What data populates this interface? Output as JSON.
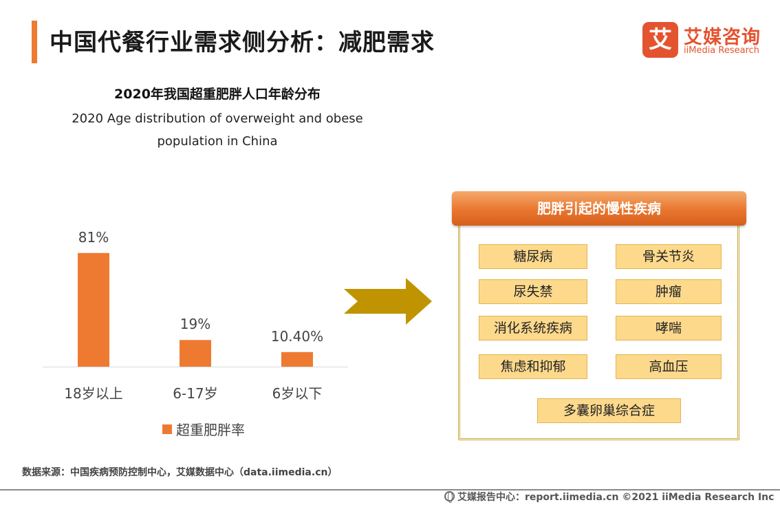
{
  "page": {
    "title": "中国代餐行业需求侧分析：减肥需求"
  },
  "logo": {
    "mark": "艾",
    "name_cn": "艾媒咨询",
    "name_en": "iiMedia Research"
  },
  "chart_data": {
    "type": "bar",
    "title": "2020年我国超重肥胖人口年龄分布",
    "subtitle_line1": "2020 Age distribution of overweight and obese",
    "subtitle_line2": "population in China",
    "categories": [
      "18岁以上",
      "6-17岁",
      "6岁以下"
    ],
    "series": [
      {
        "name": "超重肥胖率",
        "values": [
          81,
          19,
          10.4
        ],
        "labels": [
          "81%",
          "19%",
          "10.40%"
        ]
      }
    ],
    "ylim": [
      0,
      100
    ],
    "grid": false,
    "legend_position": "bottom",
    "bar_color": "#EE7A32"
  },
  "diseases": {
    "header": "肥胖引起的慢性疾病",
    "items": [
      "糖尿病",
      "骨关节炎",
      "尿失禁",
      "肿瘤",
      "消化系统疾病",
      "哮喘",
      "焦虑和抑郁",
      "高血压",
      "多囊卵巢综合症"
    ]
  },
  "colors": {
    "accent": "#EE7A32",
    "arrow": "#BF9400",
    "box_fill": "#FDD98C",
    "panel_border": "#CAA93A"
  },
  "source_note": "数据来源：中国疾病预防控制中心，艾媒数据中心（data.iimedia.cn）",
  "footer": {
    "text": "艾媒报告中心：report.iimedia.cn  ©2021  iiMedia Research  Inc"
  }
}
